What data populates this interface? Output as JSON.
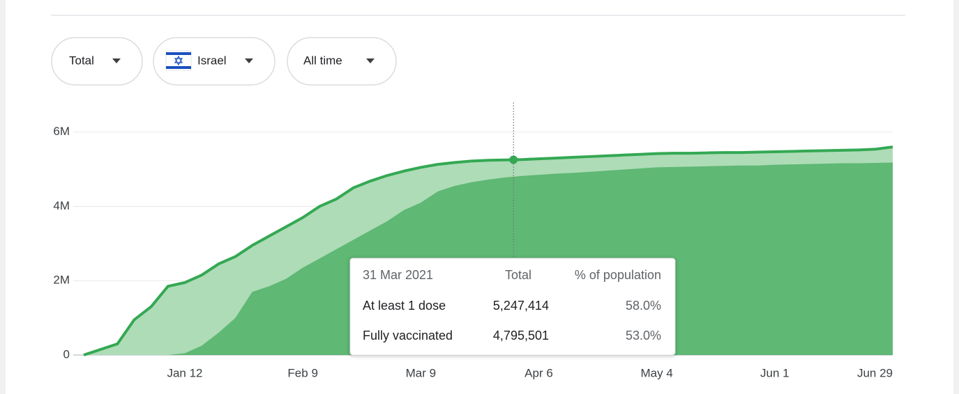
{
  "controls": {
    "metric": "Total",
    "location": "Israel",
    "range": "All time"
  },
  "chart_data": {
    "type": "area",
    "x": [
      "Dec 19",
      "Dec 23",
      "Dec 27",
      "Dec 31",
      "Jan 4",
      "Jan 8",
      "Jan 12",
      "Jan 16",
      "Jan 20",
      "Jan 24",
      "Jan 28",
      "Feb 1",
      "Feb 5",
      "Feb 9",
      "Feb 13",
      "Feb 17",
      "Feb 21",
      "Feb 25",
      "Mar 1",
      "Mar 5",
      "Mar 9",
      "Mar 13",
      "Mar 17",
      "Mar 21",
      "Mar 25",
      "Mar 29",
      "Apr 2",
      "Apr 6",
      "Apr 10",
      "Apr 14",
      "Apr 18",
      "Apr 22",
      "Apr 26",
      "Apr 30",
      "May 4",
      "May 8",
      "May 12",
      "May 16",
      "May 20",
      "May 24",
      "May 28",
      "Jun 1",
      "Jun 5",
      "Jun 9",
      "Jun 13",
      "Jun 17",
      "Jun 21",
      "Jun 25",
      "Jun 29"
    ],
    "series": [
      {
        "name": "At least 1 dose",
        "color": "#aedcb7",
        "line_color": "#34a853",
        "values": [
          0,
          150000,
          300000,
          950000,
          1300000,
          1850000,
          1950000,
          2150000,
          2450000,
          2650000,
          2950000,
          3200000,
          3450000,
          3700000,
          4000000,
          4200000,
          4500000,
          4680000,
          4830000,
          4950000,
          5050000,
          5130000,
          5180000,
          5220000,
          5240000,
          5250000,
          5260000,
          5280000,
          5300000,
          5320000,
          5340000,
          5360000,
          5380000,
          5400000,
          5420000,
          5430000,
          5430000,
          5440000,
          5450000,
          5450000,
          5460000,
          5470000,
          5480000,
          5490000,
          5500000,
          5510000,
          5520000,
          5540000,
          5600000
        ]
      },
      {
        "name": "Fully vaccinated",
        "color": "#5fb874",
        "values": [
          0,
          0,
          0,
          0,
          0,
          0,
          50000,
          250000,
          600000,
          1000000,
          1700000,
          1850000,
          2050000,
          2350000,
          2600000,
          2850000,
          3100000,
          3350000,
          3600000,
          3900000,
          4100000,
          4400000,
          4550000,
          4650000,
          4720000,
          4780000,
          4820000,
          4850000,
          4880000,
          4900000,
          4930000,
          4960000,
          4990000,
          5020000,
          5050000,
          5060000,
          5070000,
          5080000,
          5090000,
          5100000,
          5100000,
          5120000,
          5130000,
          5140000,
          5150000,
          5160000,
          5160000,
          5170000,
          5180000
        ]
      }
    ],
    "ylim": [
      0,
      6800000
    ],
    "yticks": [
      0,
      {
        "value": 2000000,
        "label": "2M"
      },
      {
        "value": 4000000,
        "label": "4M"
      },
      {
        "value": 6000000,
        "label": "6M"
      }
    ],
    "xticks": [
      "Jan 12",
      "Feb 9",
      "Mar 9",
      "Apr 6",
      "May 4",
      "Jun 1",
      "Jun 29"
    ],
    "grid": true,
    "tooltip": {
      "date": "31 Mar 2021",
      "headers": [
        "Total",
        "% of population"
      ],
      "rows": [
        {
          "label": "At least 1 dose",
          "total": "5,247,414",
          "percent": "58.0%"
        },
        {
          "label": "Fully vaccinated",
          "total": "4,795,501",
          "percent": "53.0%"
        }
      ]
    }
  }
}
